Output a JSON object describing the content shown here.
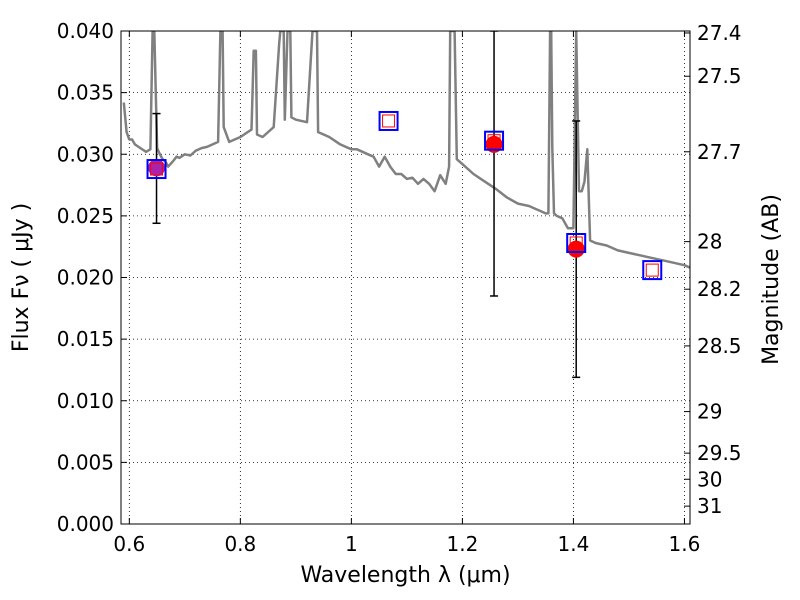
{
  "chart_data": {
    "type": "line",
    "title": "",
    "xlabel": "Wavelength  λ (μm)",
    "ylabel": "Flux  Fν  ( μJy )",
    "y2label": "Magnitude (AB)",
    "xlim": [
      0.585,
      1.61
    ],
    "ylim": [
      0.0,
      0.04
    ],
    "grid": true,
    "xticks": [
      0.6,
      0.8,
      1.0,
      1.2,
      1.4,
      1.6
    ],
    "xtick_labels": [
      "0.6",
      "0.8",
      "1",
      "1.2",
      "1.4",
      "1.6"
    ],
    "yticks": [
      0.0,
      0.005,
      0.01,
      0.015,
      0.02,
      0.025,
      0.03,
      0.035,
      0.04
    ],
    "ytick_labels": [
      "0.000",
      "0.005",
      "0.010",
      "0.015",
      "0.020",
      "0.025",
      "0.030",
      "0.035",
      "0.040"
    ],
    "y2ticks": [
      {
        "flux": 0.03984,
        "label": "27.4"
      },
      {
        "flux": 0.03633,
        "label": "27.5"
      },
      {
        "flux": 0.0302,
        "label": "27.7"
      },
      {
        "flux": 0.02291,
        "label": "28"
      },
      {
        "flux": 0.01905,
        "label": "28.2"
      },
      {
        "flux": 0.01445,
        "label": "28.5"
      },
      {
        "flux": 0.00912,
        "label": "29"
      },
      {
        "flux": 0.00575,
        "label": "29.5"
      },
      {
        "flux": 0.00363,
        "label": "30"
      },
      {
        "flux": 0.00145,
        "label": "31"
      }
    ],
    "series": [
      {
        "name": "model spectrum",
        "color": "#808080",
        "x": [
          0.59,
          0.595,
          0.6,
          0.605,
          0.61,
          0.62,
          0.63,
          0.638,
          0.642,
          0.645,
          0.65,
          0.655,
          0.66,
          0.665,
          0.67,
          0.68,
          0.685,
          0.69,
          0.7,
          0.71,
          0.72,
          0.73,
          0.74,
          0.75,
          0.76,
          0.764,
          0.766,
          0.768,
          0.77,
          0.78,
          0.8,
          0.82,
          0.824,
          0.826,
          0.828,
          0.83,
          0.84,
          0.86,
          0.87,
          0.872,
          0.874,
          0.876,
          0.878,
          0.88,
          0.885,
          0.888,
          0.89,
          0.892,
          0.9,
          0.92,
          0.93,
          0.932,
          0.934,
          0.936,
          0.938,
          0.94,
          0.95,
          0.96,
          0.97,
          0.98,
          0.99,
          1.0,
          1.01,
          1.02,
          1.03,
          1.04,
          1.05,
          1.06,
          1.07,
          1.08,
          1.09,
          1.1,
          1.11,
          1.12,
          1.13,
          1.14,
          1.15,
          1.16,
          1.17,
          1.176,
          1.178,
          1.18,
          1.182,
          1.184,
          1.186,
          1.19,
          1.2,
          1.22,
          1.24,
          1.26,
          1.28,
          1.3,
          1.32,
          1.33,
          1.34,
          1.35,
          1.355,
          1.358,
          1.36,
          1.362,
          1.365,
          1.37,
          1.38,
          1.39,
          1.4,
          1.405,
          1.41,
          1.415,
          1.42,
          1.425,
          1.43,
          1.44,
          1.46,
          1.48,
          1.5,
          1.52,
          1.54,
          1.56,
          1.58,
          1.6,
          1.61
        ],
        "y": [
          0.0342,
          0.0318,
          0.0312,
          0.0312,
          0.0308,
          0.0305,
          0.0302,
          0.0304,
          0.04,
          0.04,
          0.0305,
          0.03,
          0.0296,
          0.0294,
          0.029,
          0.0295,
          0.0298,
          0.0297,
          0.03,
          0.0299,
          0.0303,
          0.0305,
          0.0306,
          0.0308,
          0.031,
          0.04,
          0.04,
          0.04,
          0.0322,
          0.031,
          0.0314,
          0.032,
          0.0384,
          0.0384,
          0.0384,
          0.0316,
          0.0314,
          0.0322,
          0.039,
          0.04,
          0.04,
          0.04,
          0.04,
          0.0328,
          0.04,
          0.04,
          0.04,
          0.033,
          0.0328,
          0.0326,
          0.04,
          0.04,
          0.04,
          0.04,
          0.04,
          0.0318,
          0.0316,
          0.0314,
          0.0311,
          0.0308,
          0.0306,
          0.0304,
          0.0304,
          0.0302,
          0.03,
          0.0298,
          0.029,
          0.0298,
          0.029,
          0.0284,
          0.0284,
          0.028,
          0.0281,
          0.0276,
          0.028,
          0.0276,
          0.027,
          0.0283,
          0.0276,
          0.029,
          0.04,
          0.04,
          0.04,
          0.04,
          0.04,
          0.0296,
          0.0292,
          0.0284,
          0.0278,
          0.0272,
          0.0265,
          0.026,
          0.0258,
          0.0256,
          0.0254,
          0.0252,
          0.0252,
          0.04,
          0.04,
          0.0305,
          0.0252,
          0.025,
          0.0248,
          0.024,
          0.024,
          0.04,
          0.027,
          0.027,
          0.0278,
          0.0304,
          0.023,
          0.0228,
          0.0226,
          0.0222,
          0.022,
          0.0218,
          0.0216,
          0.0214,
          0.0212,
          0.021,
          0.0208
        ]
      },
      {
        "name": "filled circles",
        "color": "#ff0000",
        "x": [
          0.649,
          1.257,
          1.405
        ],
        "y": [
          0.0289,
          0.0308,
          0.0223
        ]
      },
      {
        "name": "open squares",
        "color": "#0000ff",
        "x": [
          0.649,
          1.067,
          1.257,
          1.405,
          1.542
        ],
        "y": [
          0.0288,
          0.0327,
          0.0311,
          0.0228,
          0.0206
        ]
      },
      {
        "name": "error bars",
        "color": "#000000",
        "x": [
          0.649,
          1.257,
          1.405
        ],
        "y": [
          0.0289,
          0.0308,
          0.0223
        ],
        "ylow": [
          0.0244,
          0.0185,
          0.0119
        ],
        "yhigh": [
          0.0333,
          0.04,
          0.0327
        ]
      }
    ]
  }
}
